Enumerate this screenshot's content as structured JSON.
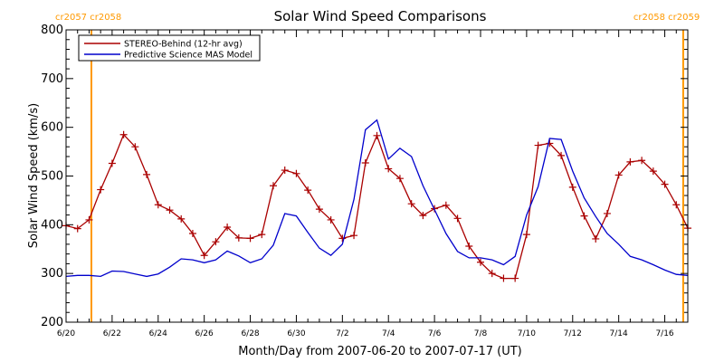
{
  "chart_data": {
    "type": "line",
    "title": "Solar Wind Speed Comparisons",
    "xlabel": "Month/Day from 2007-06-20 to 2007-07-17 (UT)",
    "ylabel": "Solar Wind Speed (km/s)",
    "xlim": [
      0,
      27
    ],
    "ylim": [
      200,
      800
    ],
    "y_ticks": [
      200,
      300,
      400,
      500,
      600,
      700,
      800
    ],
    "x_ticks": [
      {
        "x": 0,
        "label": "6/20"
      },
      {
        "x": 2,
        "label": "6/22"
      },
      {
        "x": 4,
        "label": "6/24"
      },
      {
        "x": 6,
        "label": "6/26"
      },
      {
        "x": 8,
        "label": "6/28"
      },
      {
        "x": 10,
        "label": "6/30"
      },
      {
        "x": 12,
        "label": "7/2"
      },
      {
        "x": 14,
        "label": "7/4"
      },
      {
        "x": 16,
        "label": "7/6"
      },
      {
        "x": 18,
        "label": "7/8"
      },
      {
        "x": 20,
        "label": "7/10"
      },
      {
        "x": 22,
        "label": "7/12"
      },
      {
        "x": 24,
        "label": "7/14"
      },
      {
        "x": 26,
        "label": "7/16"
      }
    ],
    "grid": false,
    "legend_position": "top-left",
    "carrington_markers": [
      {
        "x": 1.1,
        "label": "cr2057 cr2058",
        "color": "#ff9900"
      },
      {
        "x": 26.8,
        "label": "cr2058 cr2059",
        "color": "#ff9900"
      }
    ],
    "series": [
      {
        "name": "STEREO-Behind (12-hr avg)",
        "color": "#aa0000",
        "markers": true,
        "x": [
          0,
          0.5,
          1,
          1.5,
          2,
          2.5,
          3,
          3.5,
          4,
          4.5,
          5,
          5.5,
          6,
          6.5,
          7,
          7.5,
          8,
          8.5,
          9,
          9.5,
          10,
          10.5,
          11,
          11.5,
          12,
          12.5,
          13,
          13.5,
          14,
          14.5,
          15,
          15.5,
          16,
          16.5,
          17,
          17.5,
          18,
          18.5,
          19,
          19.5,
          20,
          20.5,
          21,
          21.5,
          22,
          22.5,
          23,
          23.5,
          24,
          24.5,
          25,
          25.5,
          26,
          26.5,
          27
        ],
        "y": [
          398,
          392,
          410,
          472,
          526,
          585,
          560,
          503,
          441,
          430,
          412,
          382,
          337,
          365,
          395,
          373,
          372,
          380,
          480,
          512,
          505,
          471,
          432,
          410,
          372,
          378,
          527,
          583,
          515,
          495,
          443,
          419,
          433,
          440,
          413,
          356,
          323,
          300,
          290,
          290,
          380,
          563,
          567,
          542,
          477,
          418,
          371,
          423,
          502,
          529,
          532,
          510,
          483,
          441,
          393
        ]
      },
      {
        "name": "Predictive Science MAS Model",
        "color": "#0000cc",
        "markers": false,
        "x": [
          0,
          0.5,
          1,
          1.5,
          2,
          2.5,
          3,
          3.5,
          4,
          4.5,
          5,
          5.5,
          6,
          6.5,
          7,
          7.5,
          8,
          8.5,
          9,
          9.5,
          10,
          10.5,
          11,
          11.5,
          12,
          12.5,
          13,
          13.5,
          14,
          14.5,
          15,
          15.5,
          16,
          16.5,
          17,
          17.5,
          18,
          18.5,
          19,
          19.5,
          20,
          20.5,
          21,
          21.5,
          22,
          22.5,
          23,
          23.5,
          24,
          24.5,
          25,
          25.5,
          26,
          26.5,
          27
        ],
        "y": [
          294,
          296,
          296,
          294,
          305,
          304,
          299,
          294,
          299,
          313,
          330,
          328,
          322,
          328,
          346,
          336,
          322,
          330,
          358,
          423,
          418,
          384,
          352,
          337,
          360,
          452,
          595,
          615,
          535,
          557,
          540,
          480,
          431,
          382,
          345,
          332,
          332,
          328,
          318,
          335,
          420,
          478,
          577,
          575,
          510,
          455,
          417,
          382,
          360,
          335,
          328,
          318,
          307,
          298,
          296
        ]
      }
    ]
  }
}
